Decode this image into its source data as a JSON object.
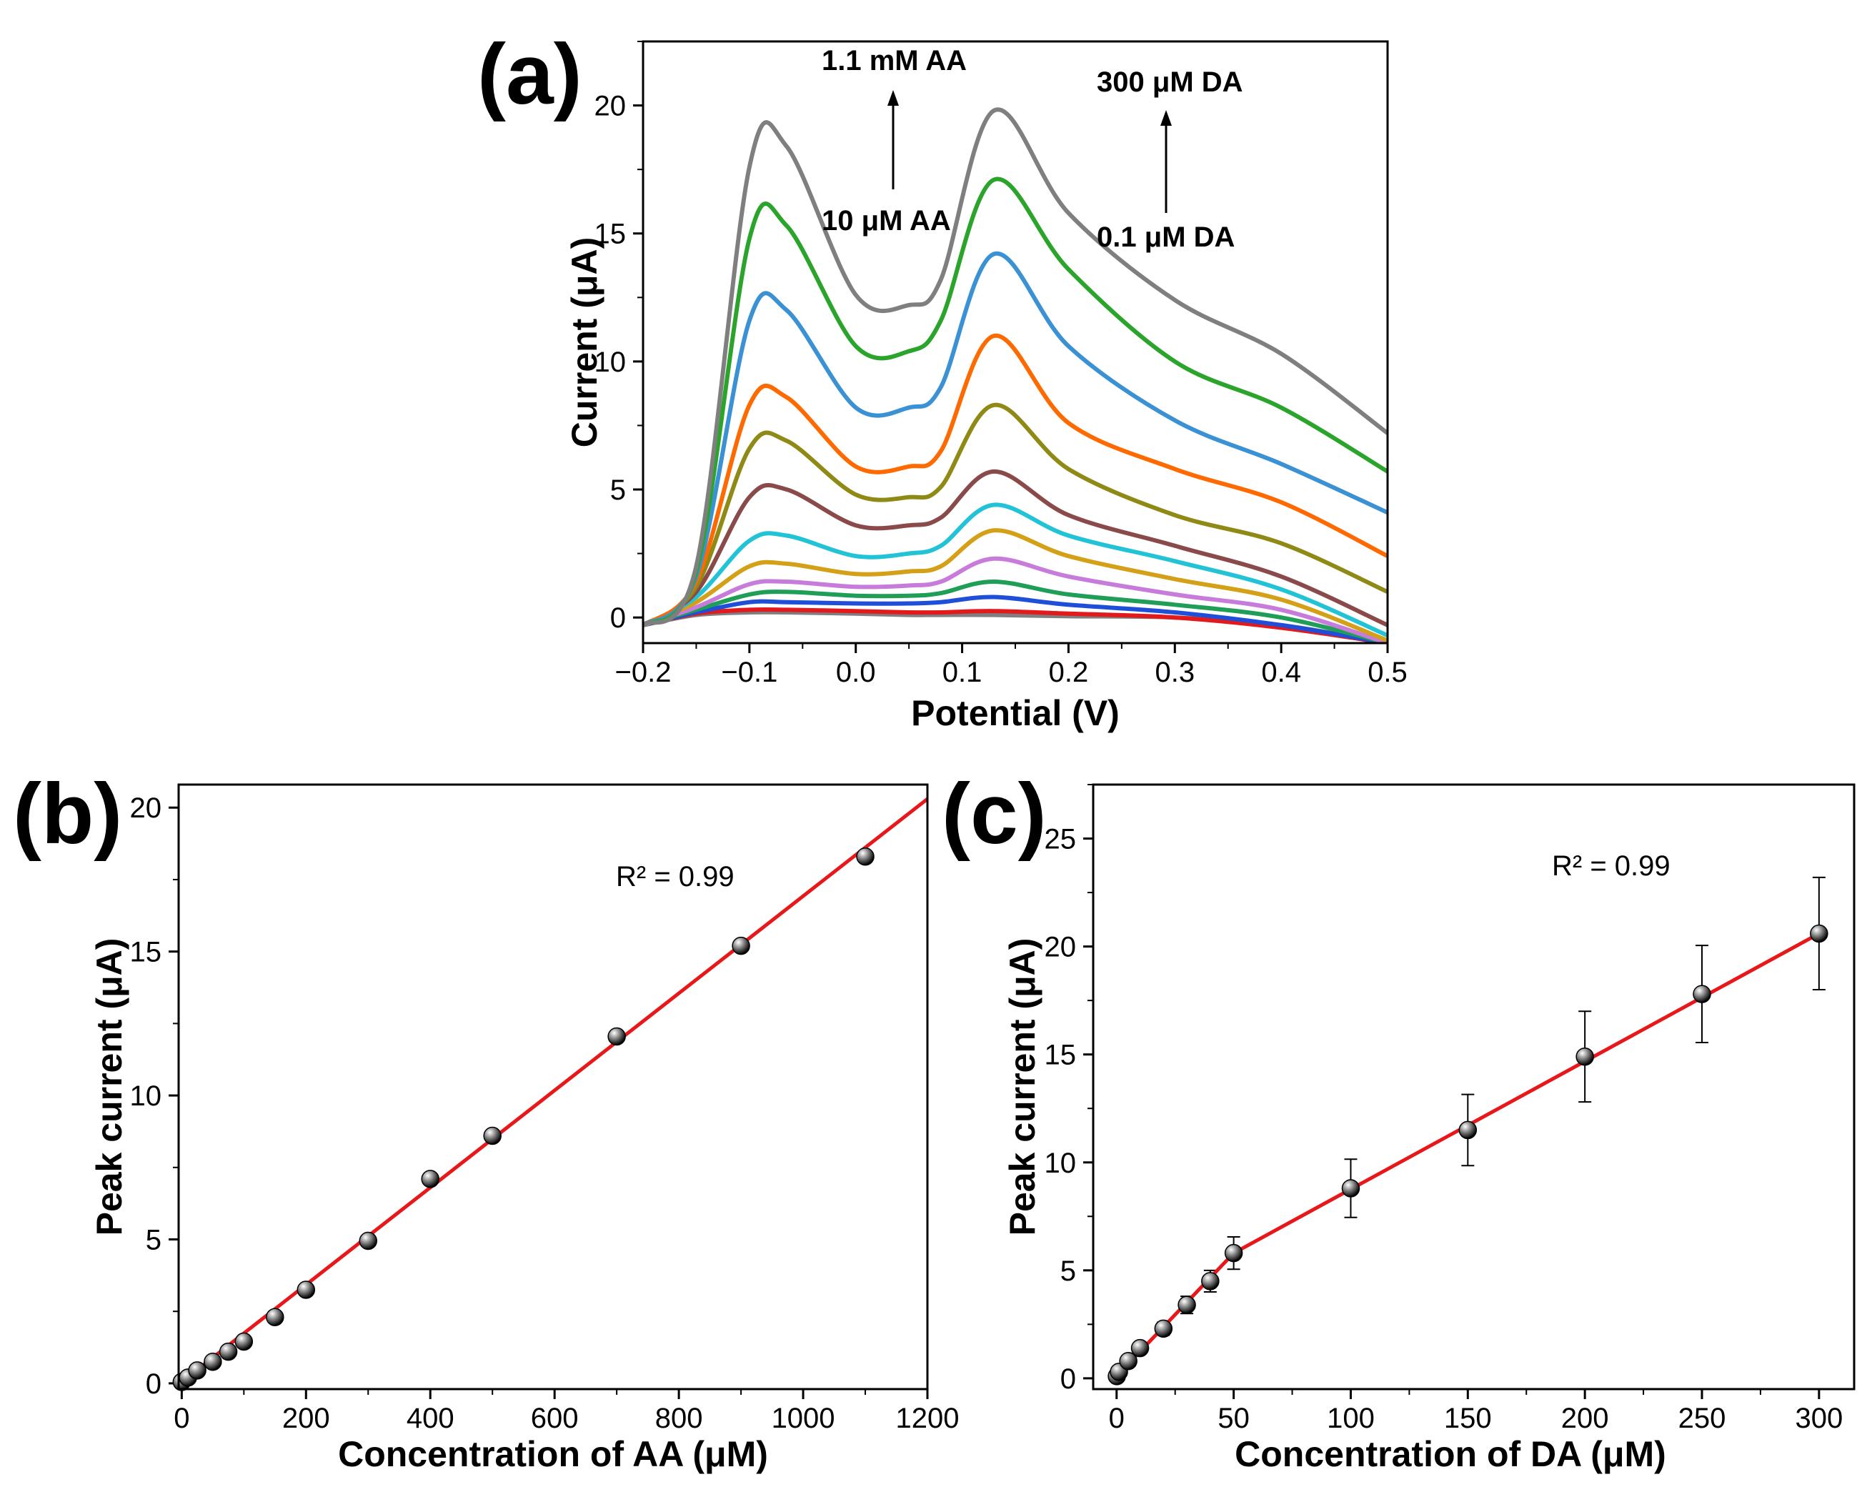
{
  "panel_labels": [
    "(a)",
    "(b)",
    "(c)"
  ],
  "chart_data": [
    {
      "type": "line",
      "panel": "(a)",
      "xlabel": "Potential (V)",
      "ylabel": "Current (μA)",
      "xlim": [
        -0.2,
        0.5
      ],
      "ylim": [
        -1,
        22.5
      ],
      "xticks": [
        "−0.2",
        "−0.1",
        "0.0",
        "0.1",
        "0.2",
        "0.3",
        "0.4",
        "0.5"
      ],
      "yticks": [
        "0",
        "5",
        "10",
        "15",
        "20"
      ],
      "annotations": {
        "aa_high": "1.1 mM AA",
        "aa_low": "10 μM AA",
        "da_high": "300 μM DA",
        "da_low": "0.1 μM DA"
      },
      "potential": [
        -0.2,
        -0.15,
        -0.1,
        -0.065,
        0.0,
        0.05,
        0.08,
        0.13,
        0.2,
        0.3,
        0.4,
        0.5
      ],
      "series": [
        {
          "name": "curve-1",
          "color": "#7f7f7f",
          "values": [
            -0.3,
            0.1,
            0.2,
            0.2,
            0.15,
            0.1,
            0.1,
            0.1,
            0.05,
            0.0,
            -0.3,
            -1.0
          ]
        },
        {
          "name": "curve-2",
          "color": "#e31a1c",
          "values": [
            -0.3,
            0.15,
            0.3,
            0.3,
            0.25,
            0.2,
            0.2,
            0.25,
            0.15,
            0.0,
            -0.4,
            -1.0
          ]
        },
        {
          "name": "curve-3",
          "color": "#1f4fd8",
          "values": [
            -0.3,
            0.2,
            0.6,
            0.6,
            0.55,
            0.55,
            0.6,
            0.8,
            0.5,
            0.2,
            -0.3,
            -1.0
          ]
        },
        {
          "name": "curve-4",
          "color": "#1f9e57",
          "values": [
            -0.3,
            0.3,
            0.9,
            1.0,
            0.85,
            0.85,
            0.95,
            1.4,
            0.9,
            0.5,
            0.0,
            -1.0
          ]
        },
        {
          "name": "curve-5",
          "color": "#c77cdb",
          "values": [
            -0.3,
            0.4,
            1.3,
            1.4,
            1.2,
            1.25,
            1.4,
            2.3,
            1.6,
            0.9,
            0.3,
            -1.0
          ]
        },
        {
          "name": "curve-6",
          "color": "#d4a017",
          "values": [
            -0.3,
            0.6,
            2.0,
            2.1,
            1.7,
            1.8,
            2.0,
            3.4,
            2.4,
            1.5,
            0.7,
            -0.9
          ]
        },
        {
          "name": "curve-7",
          "color": "#22c3d6",
          "values": [
            -0.3,
            0.8,
            3.0,
            3.2,
            2.4,
            2.5,
            2.8,
            4.4,
            3.2,
            2.2,
            1.1,
            -0.7
          ]
        },
        {
          "name": "curve-8",
          "color": "#8b4a4a",
          "values": [
            -0.3,
            1.0,
            4.7,
            5.0,
            3.6,
            3.6,
            3.9,
            5.7,
            4.0,
            2.8,
            1.6,
            -0.3
          ]
        },
        {
          "name": "curve-9",
          "color": "#8f8a16",
          "values": [
            -0.3,
            1.2,
            6.6,
            6.9,
            4.8,
            4.7,
            5.1,
            8.3,
            5.8,
            4.0,
            2.9,
            1.0
          ]
        },
        {
          "name": "curve-10",
          "color": "#ff6a00",
          "values": [
            -0.3,
            1.4,
            8.3,
            8.6,
            5.9,
            5.9,
            6.5,
            11.0,
            7.6,
            5.8,
            4.5,
            2.4
          ]
        },
        {
          "name": "curve-11",
          "color": "#3a91d4",
          "values": [
            -0.3,
            1.6,
            11.6,
            12.0,
            8.2,
            8.2,
            9.0,
            14.2,
            10.6,
            7.7,
            6.0,
            4.1
          ]
        },
        {
          "name": "curve-12",
          "color": "#2ba42b",
          "values": [
            -0.3,
            1.8,
            14.8,
            15.3,
            10.6,
            10.4,
            11.6,
            17.1,
            13.6,
            10.0,
            8.2,
            5.7
          ]
        },
        {
          "name": "curve-13",
          "color": "#7f7f7f",
          "values": [
            -0.3,
            2.0,
            17.6,
            18.4,
            12.6,
            12.2,
            13.2,
            19.8,
            15.8,
            12.4,
            10.3,
            7.2
          ]
        }
      ]
    },
    {
      "type": "scatter",
      "panel": "(b)",
      "xlabel": "Concentration of AA (μM)",
      "ylabel": "Peak current (μA)",
      "xlim": [
        -5,
        1200
      ],
      "ylim": [
        -0.2,
        20.8
      ],
      "xticks": [
        "0",
        "200",
        "400",
        "600",
        "800",
        "1000",
        "1200"
      ],
      "yticks": [
        "0",
        "5",
        "10",
        "15",
        "20"
      ],
      "r2_text": "R² = 0.99",
      "x": [
        0,
        10,
        25,
        50,
        75,
        100,
        150,
        200,
        300,
        400,
        500,
        700,
        900,
        1100
      ],
      "y": [
        0.05,
        0.2,
        0.45,
        0.75,
        1.1,
        1.45,
        2.3,
        3.25,
        4.95,
        7.1,
        8.6,
        12.05,
        15.2,
        18.3
      ],
      "fit": {
        "x": [
          0,
          1200
        ],
        "y": [
          0.05,
          20.3
        ],
        "color": "#e8181a"
      }
    },
    {
      "type": "scatter",
      "panel": "(c)",
      "xlabel": "Concentration of DA (μM)",
      "ylabel": "Peak current (μA)",
      "xlim": [
        -10,
        315
      ],
      "ylim": [
        -0.5,
        27.5
      ],
      "xticks": [
        "0",
        "50",
        "100",
        "150",
        "200",
        "250",
        "300"
      ],
      "yticks": [
        "0",
        "5",
        "10",
        "15",
        "20",
        "25"
      ],
      "r2_text": "R² = 0.99",
      "x": [
        0.1,
        1,
        5,
        10,
        20,
        30,
        40,
        50,
        100,
        150,
        200,
        250,
        300
      ],
      "y": [
        0.1,
        0.3,
        0.8,
        1.4,
        2.3,
        3.4,
        4.5,
        5.8,
        8.8,
        11.5,
        14.9,
        17.8,
        20.6
      ],
      "error": [
        0.1,
        0.15,
        0.2,
        0.25,
        0.3,
        0.4,
        0.5,
        0.75,
        1.35,
        1.65,
        2.1,
        2.25,
        2.6
      ],
      "fit": {
        "x": [
          0,
          50,
          300
        ],
        "y": [
          0.1,
          5.8,
          20.6
        ],
        "color": "#e8181a"
      }
    }
  ]
}
